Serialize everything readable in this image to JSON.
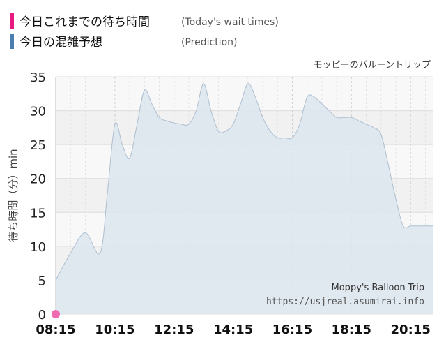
{
  "legend": [
    {
      "label": "今日これまでの待ち時間",
      "sub": "(Today's wait times)",
      "color": "#e8197f"
    },
    {
      "label": "今日の混雑予想",
      "sub": "(Prediction)",
      "color": "#4a7fb0"
    }
  ],
  "attribution": {
    "attraction_jp": "モッピーのバルーントリップ",
    "attraction_en": "Moppy's Balloon Trip",
    "url": "https://usjreal.asumirai.info"
  },
  "colors": {
    "area_fill": "#dde6ee",
    "area_stroke": "#aebfd0",
    "band_shade": "#f1f1f1",
    "band_light": "#f8f8f8",
    "actual_point": "#f06ab0"
  },
  "chart_data": {
    "type": "area",
    "ylabel": "待ち時間（分）min",
    "ylim": [
      0,
      35
    ],
    "yticks": [
      0,
      5,
      10,
      15,
      20,
      25,
      30,
      35
    ],
    "xlim": [
      "08:15",
      "21:00"
    ],
    "xticks": [
      "08:15",
      "10:15",
      "12:15",
      "14:15",
      "16:15",
      "18:15",
      "20:15"
    ],
    "grid": true,
    "series": [
      {
        "name": "今日の混雑予想",
        "x": [
          "08:15",
          "08:45",
          "09:15",
          "09:45",
          "10:00",
          "10:15",
          "10:30",
          "10:45",
          "11:00",
          "11:15",
          "11:30",
          "11:45",
          "12:00",
          "12:15",
          "12:30",
          "12:45",
          "13:00",
          "13:15",
          "13:30",
          "13:45",
          "14:00",
          "14:15",
          "14:30",
          "14:45",
          "15:00",
          "15:15",
          "15:30",
          "15:45",
          "16:00",
          "16:15",
          "16:30",
          "16:45",
          "17:00",
          "17:15",
          "17:30",
          "17:45",
          "18:00",
          "18:15",
          "18:30",
          "18:45",
          "19:00",
          "19:15",
          "19:30",
          "19:45",
          "20:00",
          "20:15",
          "20:30",
          "20:45",
          "21:00"
        ],
        "values": [
          5,
          9,
          12,
          9,
          18,
          28,
          25,
          23,
          28,
          33,
          31,
          29,
          28.5,
          28.2,
          28,
          28,
          30,
          34,
          30,
          27,
          27,
          28,
          31,
          34,
          32,
          29,
          27,
          26,
          26,
          26,
          28,
          32,
          32,
          31,
          30,
          29,
          29,
          29,
          28.5,
          28,
          27.5,
          26.5,
          22,
          17,
          13,
          13,
          13,
          13,
          13
        ]
      },
      {
        "name": "今日これまでの待ち時間",
        "x": [
          "08:15"
        ],
        "values": [
          0
        ]
      }
    ]
  }
}
